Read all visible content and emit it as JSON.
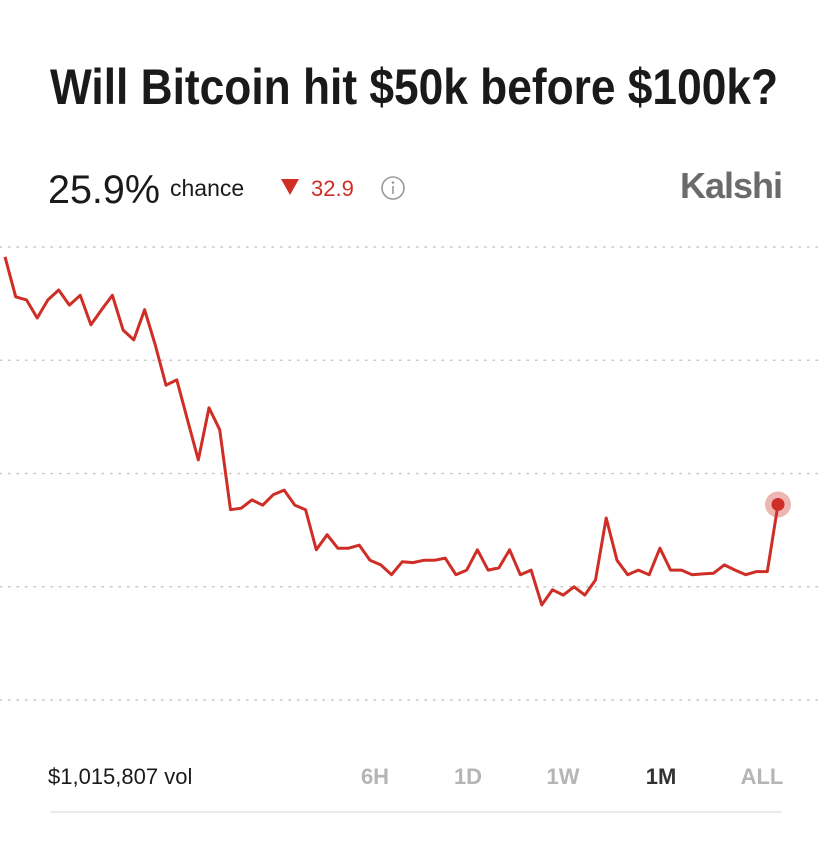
{
  "header": {
    "title": "Will Bitcoin hit $50k before $100k?"
  },
  "stats": {
    "chance": "25.9%",
    "chance_text": "chance",
    "change": 32.9,
    "change_direction": "down"
  },
  "brand": "Kalshi",
  "chart_data": {
    "type": "line",
    "color": "#cf2e26",
    "values": [
      58.7,
      53.4,
      53,
      50.6,
      53,
      54.3,
      52.3,
      53.6,
      49.7,
      51.7,
      53.6,
      49,
      47.7,
      51.7,
      47,
      41.7,
      42.4,
      37.1,
      31.8,
      38.7,
      35.8,
      25.2,
      25.4,
      26.5,
      25.8,
      27.2,
      27.8,
      25.8,
      25.2,
      19.9,
      21.9,
      20.1,
      20.1,
      20.5,
      18.5,
      17.9,
      16.6,
      18.3,
      18.2,
      18.5,
      18.5,
      18.8,
      16.6,
      17.2,
      19.9,
      17.2,
      17.5,
      19.9,
      16.6,
      17.2,
      12.6,
      14.6,
      13.9,
      15,
      13.9,
      15.9,
      24.1,
      18.5,
      16.6,
      17.2,
      16.6,
      20.1,
      17.2,
      17.2,
      16.6,
      16.7,
      16.8,
      17.9,
      17.2,
      16.6,
      17,
      17,
      25.9
    ],
    "ylim": [
      0,
      60
    ],
    "yticks": [
      0,
      15,
      30,
      45,
      60
    ],
    "grid": true
  },
  "footer": {
    "volume": "$1,015,807 vol",
    "ranges": [
      "6H",
      "1D",
      "1W",
      "1M",
      "ALL"
    ],
    "selected_range": 3
  }
}
